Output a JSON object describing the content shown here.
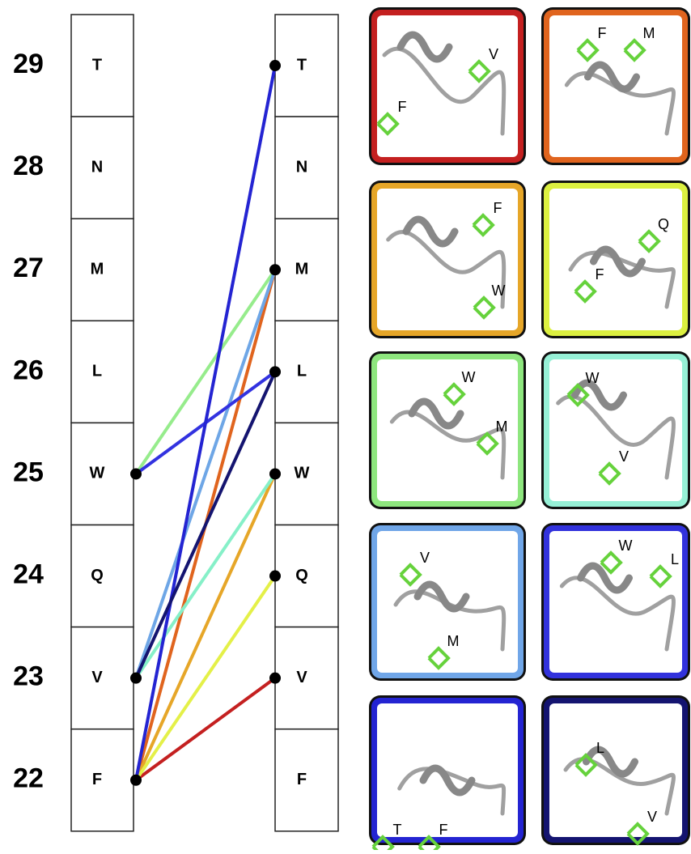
{
  "position_numbers": [
    "29",
    "28",
    "27",
    "26",
    "25",
    "24",
    "23",
    "22"
  ],
  "left_residues": [
    "T",
    "N",
    "M",
    "L",
    "W",
    "Q",
    "V",
    "F"
  ],
  "right_residues": [
    "T",
    "N",
    "M",
    "L",
    "W",
    "Q",
    "V",
    "F"
  ],
  "panels": [
    {
      "labels": [
        "V",
        "F"
      ]
    },
    {
      "labels": [
        "F",
        "M"
      ]
    },
    {
      "labels": [
        "F",
        "W"
      ]
    },
    {
      "labels": [
        "Q",
        "F"
      ]
    },
    {
      "labels": [
        "W",
        "M"
      ]
    },
    {
      "labels": [
        "W",
        "V"
      ]
    },
    {
      "labels": [
        "V",
        "M"
      ]
    },
    {
      "labels": [
        "W",
        "L"
      ]
    },
    {
      "labels": [
        "T",
        "F"
      ]
    },
    {
      "labels": [
        "L",
        "V"
      ]
    }
  ]
}
